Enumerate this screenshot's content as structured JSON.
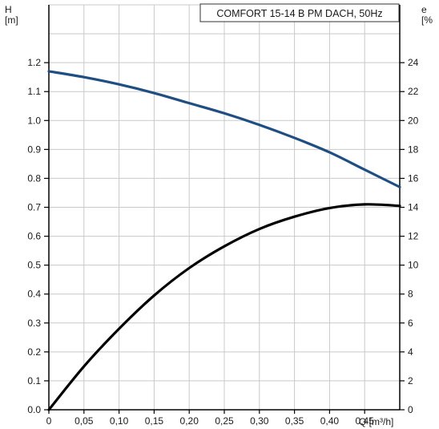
{
  "chart_data": {
    "type": "line",
    "title": "COMFORT 15-14 B PM DACH, 50Hz",
    "x_axis": {
      "label": "Q [m³/h]",
      "range": [
        0,
        0.5
      ],
      "ticks": [
        0,
        0.05,
        0.1,
        0.15,
        0.2,
        0.25,
        0.3,
        0.35,
        0.4,
        0.45
      ],
      "tick_labels": [
        "0",
        "0,05",
        "0,10",
        "0,15",
        "0,20",
        "0,25",
        "0,30",
        "0,35",
        "0,40",
        "0,45"
      ]
    },
    "y_left": {
      "label_line1": "H",
      "label_line2": "[m]",
      "range": [
        0,
        1.4
      ],
      "ticks": [
        0,
        0.1,
        0.2,
        0.3,
        0.4,
        0.5,
        0.6,
        0.7,
        0.8,
        0.9,
        1.0,
        1.1,
        1.2
      ],
      "tick_labels": [
        "0.0",
        "0.1",
        "0.2",
        "0.3",
        "0.4",
        "0.5",
        "0.6",
        "0.7",
        "0.8",
        "0.9",
        "1.0",
        "1.1",
        "1.2"
      ]
    },
    "y_right": {
      "label_line1": "e",
      "label_line2": "[%",
      "range": [
        0,
        28
      ],
      "ticks": [
        0,
        2,
        4,
        6,
        8,
        10,
        12,
        14,
        16,
        18,
        20,
        22,
        24
      ],
      "tick_labels": [
        "0",
        "2",
        "4",
        "6",
        "8",
        "10",
        "12",
        "14",
        "16",
        "18",
        "20",
        "22",
        "24"
      ]
    },
    "grid": true,
    "series": [
      {
        "axis": "left",
        "color": "#1f4e82",
        "x": [
          0,
          0.05,
          0.1,
          0.15,
          0.2,
          0.25,
          0.3,
          0.35,
          0.4,
          0.45,
          0.5
        ],
        "y": [
          1.17,
          1.15,
          1.125,
          1.095,
          1.06,
          1.025,
          0.985,
          0.94,
          0.89,
          0.83,
          0.77
        ]
      },
      {
        "axis": "right",
        "color": "#000000",
        "x": [
          0,
          0.05,
          0.1,
          0.15,
          0.2,
          0.25,
          0.3,
          0.35,
          0.4,
          0.45,
          0.5
        ],
        "y": [
          0,
          3.0,
          5.6,
          7.9,
          9.8,
          11.3,
          12.5,
          13.35,
          13.95,
          14.2,
          14.1
        ]
      }
    ]
  }
}
